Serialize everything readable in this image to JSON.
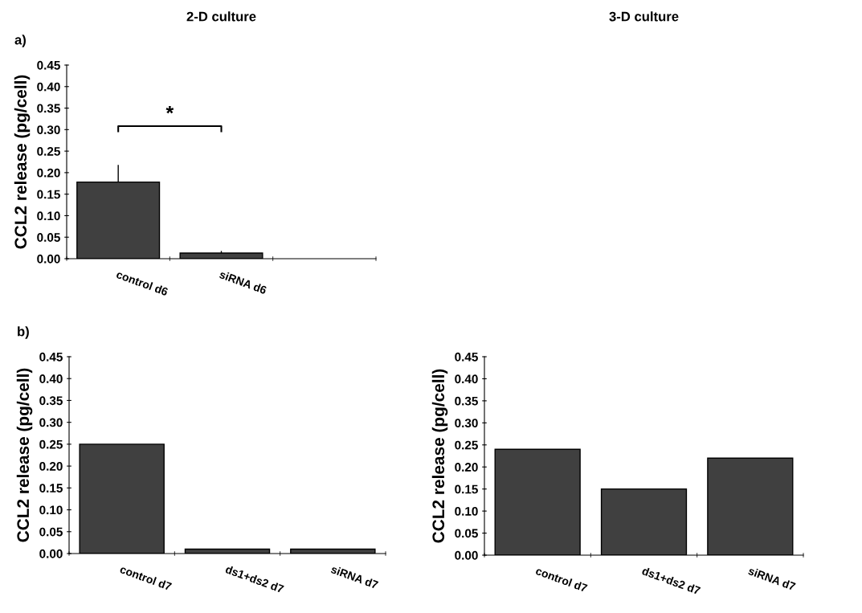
{
  "chart_data": [
    {
      "type": "bar",
      "title": "2-D culture",
      "ylabel": "CCL2 release (pg/cell)",
      "categories": [
        "control d6",
        "siRNA d6",
        null
      ],
      "values": [
        0.178,
        0.013,
        null
      ],
      "errors": [
        [
          0.178,
          0.218
        ],
        [
          0.013,
          0.018
        ],
        null
      ],
      "color": "#404040",
      "ylim": [
        0,
        0.45
      ],
      "yticks": [
        {
          "value": 0,
          "label": "0.00"
        },
        {
          "value": 0.05,
          "label": "0.05"
        },
        {
          "value": 0.1,
          "label": "0.10"
        },
        {
          "value": 0.15,
          "label": "0.15"
        },
        {
          "value": 0.2,
          "label": "0.20"
        },
        {
          "value": 0.25,
          "label": "0.25"
        },
        {
          "value": 0.3,
          "label": "0.30"
        },
        {
          "value": 0.35,
          "label": "0.35"
        },
        {
          "value": 0.4,
          "label": "0.40"
        },
        {
          "value": 0.45,
          "label": "0.45"
        }
      ],
      "annotations": [
        "a)",
        {
          "text": "*"
        }
      ],
      "grid": false,
      "legend": false
    },
    {
      "type": "bar",
      "ylabel": "CCL2 release (pg/cell)",
      "categories": [
        "control d7",
        "ds1+ds2 d7",
        "siRNA d7"
      ],
      "values": [
        0.25,
        0.01,
        0.01
      ],
      "color": "#404040",
      "ylim": [
        0,
        0.45
      ],
      "yticks": [
        {
          "value": 0,
          "label": "0.00"
        },
        {
          "value": 0.05,
          "label": "0.05"
        },
        {
          "value": 0.1,
          "label": "0.10"
        },
        {
          "value": 0.15,
          "label": "0.15"
        },
        {
          "value": 0.2,
          "label": "0.20"
        },
        {
          "value": 0.25,
          "label": "0.25"
        },
        {
          "value": 0.3,
          "label": "0.30"
        },
        {
          "value": 0.35,
          "label": "0.35"
        },
        {
          "value": 0.4,
          "label": "0.40"
        },
        {
          "value": 0.45,
          "label": "0.45"
        }
      ],
      "annotations": [
        "b)"
      ],
      "grid": false,
      "legend": false
    },
    {
      "type": "bar",
      "title": "3-D culture",
      "ylabel": "CCL2 release (pg/cell)",
      "categories": [
        "control d7",
        "ds1+ds2 d7",
        "siRNA d7"
      ],
      "values": [
        0.24,
        0.15,
        0.22
      ],
      "color": "#404040",
      "ylim": [
        0,
        0.45
      ],
      "yticks": [
        {
          "value": 0,
          "label": "0.00"
        },
        {
          "value": 0.05,
          "label": "0.05"
        },
        {
          "value": 0.1,
          "label": "0.10"
        },
        {
          "value": 0.15,
          "label": "0.15"
        },
        {
          "value": 0.2,
          "label": "0.20"
        },
        {
          "value": 0.25,
          "label": "0.25"
        },
        {
          "value": 0.3,
          "label": "0.30"
        },
        {
          "value": 0.35,
          "label": "0.35"
        },
        {
          "value": 0.4,
          "label": "0.40"
        },
        {
          "value": 0.45,
          "label": "0.45"
        }
      ],
      "grid": false,
      "legend": false
    }
  ]
}
